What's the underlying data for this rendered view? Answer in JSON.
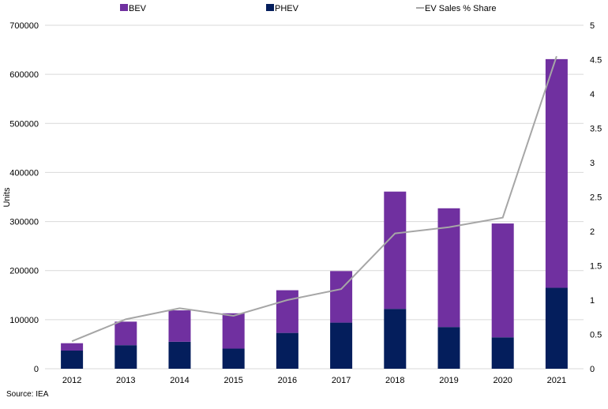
{
  "chart_data": {
    "type": "bar",
    "stacked": true,
    "categories": [
      "2012",
      "2013",
      "2014",
      "2015",
      "2016",
      "2017",
      "2018",
      "2019",
      "2020",
      "2021"
    ],
    "series": [
      {
        "name": "PHEV",
        "type": "bar",
        "axis": "left",
        "color": "#041e5c",
        "values": [
          37000,
          48000,
          55000,
          41000,
          73000,
          94000,
          122000,
          85000,
          64000,
          165000
        ]
      },
      {
        "name": "BEV",
        "type": "bar",
        "axis": "left",
        "color": "#7030a0",
        "values": [
          15000,
          48000,
          64000,
          72000,
          87000,
          105000,
          239000,
          242000,
          232000,
          466000
        ]
      },
      {
        "name": "EV Sales % Share",
        "type": "line",
        "axis": "right",
        "color": "#a6a6a6",
        "values": [
          0.4,
          0.72,
          0.88,
          0.77,
          1.0,
          1.16,
          1.97,
          2.06,
          2.2,
          4.55
        ]
      }
    ],
    "legend_order": [
      "BEV",
      "PHEV",
      "EV Sales % Share"
    ],
    "legend_position": "top",
    "ylabel": "Units",
    "ylim": [
      0,
      700000
    ],
    "yticks": [
      "0",
      "100000",
      "200000",
      "300000",
      "400000",
      "500000",
      "600000",
      "700000"
    ],
    "y2lim": [
      0,
      5
    ],
    "y2ticks": [
      "0",
      "0.5",
      "1",
      "1.5",
      "2",
      "2.5",
      "3",
      "3.5",
      "4",
      "4.5",
      "5"
    ],
    "grid": true
  },
  "source": "Source: IEA"
}
